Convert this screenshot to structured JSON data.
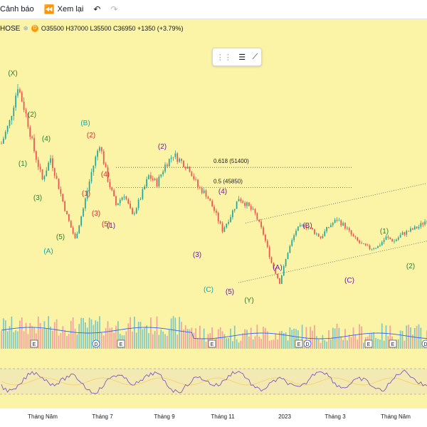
{
  "toolbar": {
    "alert_label": "Cảnh báo",
    "replay_label": "Xem lại",
    "undo_icon": "undo-icon",
    "redo_icon": "redo-icon"
  },
  "legend": {
    "symbol": "HOSE",
    "interval_badge": "D",
    "ohlc": "O35500 H37000 L35500 C36950 +1350 (+3.79%)"
  },
  "colors": {
    "background": "#fbf3a6",
    "up": "#26a69a",
    "down": "#ef5350",
    "volume_up": "#82c8c0",
    "volume_down": "#f2a3a0",
    "volume_ma": "#2962ff",
    "rsi_line": "#7e57c2",
    "rsi_signal": "#f5d36a",
    "wave_green": "#2e7d32",
    "wave_red": "#d32f2f",
    "wave_cyan": "#00acc1",
    "wave_purple": "#6a1b9a",
    "wave_navy": "#1a237e"
  },
  "chart_data": {
    "type": "candlestick",
    "timeframe": "D",
    "fib_levels": [
      {
        "label": "0.618 (51400)",
        "value": 51400
      },
      {
        "label": "0.5 (45850)",
        "value": 45850
      }
    ],
    "x_ticks": [
      "Tháng Năm",
      "Tháng 7",
      "Tháng 9",
      "Tháng 11",
      "2023",
      "Tháng 3",
      "Tháng Năm"
    ],
    "event_markers": [
      "E",
      "D",
      "E",
      "E",
      "E",
      "D",
      "E",
      "E",
      "D"
    ],
    "wave_labels": [
      {
        "text": "(X)",
        "color": "green"
      },
      {
        "text": "(2)",
        "color": "green"
      },
      {
        "text": "(4)",
        "color": "green"
      },
      {
        "text": "(1)",
        "color": "green"
      },
      {
        "text": "(3)",
        "color": "green"
      },
      {
        "text": "(5)",
        "color": "green"
      },
      {
        "text": "(A)",
        "color": "cyan"
      },
      {
        "text": "(B)",
        "color": "cyan"
      },
      {
        "text": "(2)",
        "color": "red"
      },
      {
        "text": "(4)",
        "color": "red"
      },
      {
        "text": "(1)",
        "color": "red"
      },
      {
        "text": "(3)",
        "color": "red"
      },
      {
        "text": "(5)",
        "color": "red"
      },
      {
        "text": "(1)",
        "color": "purple"
      },
      {
        "text": "(2)",
        "color": "purple"
      },
      {
        "text": "(4)",
        "color": "purple"
      },
      {
        "text": "(3)",
        "color": "purple"
      },
      {
        "text": "(C)",
        "color": "cyan"
      },
      {
        "text": "(5)",
        "color": "purple"
      },
      {
        "text": "(Y)",
        "color": "green"
      },
      {
        "text": "(B)",
        "color": "purple"
      },
      {
        "text": "(A)",
        "color": "purple"
      },
      {
        "text": "(C)",
        "color": "purple"
      },
      {
        "text": "(1)",
        "color": "green"
      },
      {
        "text": "(2)",
        "color": "green"
      }
    ],
    "series": [
      {
        "name": "price_path",
        "values": [
          58000,
          64000,
          74000,
          66000,
          56000,
          48000,
          54000,
          46000,
          38000,
          31500,
          40000,
          50000,
          58000,
          48000,
          41000,
          44000,
          38000,
          43000,
          49000,
          47000,
          52000,
          55000,
          53000,
          51000,
          46000,
          44000,
          39500,
          34000,
          38000,
          43000,
          41000,
          38500,
          33000,
          25000,
          19500,
          28000,
          34000,
          35500,
          34000,
          32000,
          35000,
          37000,
          35000,
          32000,
          30000,
          29000,
          29500,
          32000,
          31000,
          33000,
          34000,
          35000,
          36950
        ]
      }
    ],
    "indicator_panels": [
      "volume",
      "rsi"
    ]
  }
}
